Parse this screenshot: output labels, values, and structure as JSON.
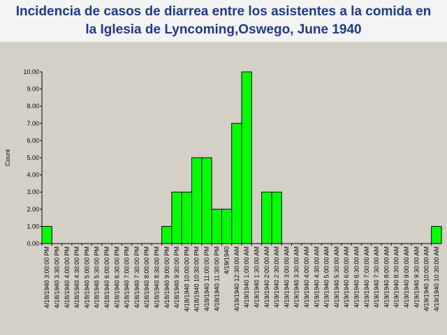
{
  "chart_data": {
    "type": "bar",
    "title": "Incidencia de casos de diarrea entre los asistentes a la comida en la Iglesia de Lyncoming,Oswego, June 1940",
    "y_label": "Count",
    "categories": [
      "4/18/1940 3:00:00 PM",
      "4/18/1940 3:30:00 PM",
      "4/18/1940 4:00:00 PM",
      "4/18/1940 4:30:00 PM",
      "4/18/1940 5:00:00 PM",
      "4/18/1940 5:30:00 PM",
      "4/18/1940 6:00:00 PM",
      "4/18/1940 6:30:00 PM",
      "4/18/1940 7:00:00 PM",
      "4/18/1940 7:30:00 PM",
      "4/18/1940 8:00:00 PM",
      "4/18/1940 8:30:00 PM",
      "4/18/1940 9:00:00 PM",
      "4/18/1940 9:30:00 PM",
      "4/18/1940 10:00:00 PM",
      "4/18/1940 10:30:00 PM",
      "4/18/1940 11:00:00 PM",
      "4/18/1940 11:30:00 PM",
      "4/19/1940",
      "4/19/1940 12:30:00 AM",
      "4/19/1940 1:00:00 AM",
      "4/19/1940 1:30:00 AM",
      "4/19/1940 2:00:00 AM",
      "4/19/1940 2:30:00 AM",
      "4/19/1940 3:00:00 AM",
      "4/19/1940 3:30:00 AM",
      "4/19/1940 4:00:00 AM",
      "4/19/1940 4:30:00 AM",
      "4/19/1940 5:00:00 AM",
      "4/19/1940 5:30:00 AM",
      "4/19/1940 6:00:00 AM",
      "4/19/1940 6:30:00 AM",
      "4/19/1940 7:00:00 AM",
      "4/19/1940 7:30:00 AM",
      "4/19/1940 8:00:00 AM",
      "4/19/1940 8:30:00 AM",
      "4/19/1940 9:00:00 AM",
      "4/19/1940 9:30:00 AM",
      "4/19/1940 10:00:00 AM",
      "4/19/1940 10:30:00 AM"
    ],
    "values": [
      1,
      0,
      0,
      0,
      0,
      0,
      0,
      0,
      0,
      0,
      0,
      0,
      1,
      3,
      3,
      5,
      5,
      2,
      2,
      7,
      10,
      0,
      3,
      3,
      0,
      0,
      0,
      0,
      0,
      0,
      0,
      0,
      0,
      0,
      0,
      0,
      0,
      0,
      0,
      1
    ],
    "color": "#00ff00",
    "ylim": [
      0,
      10
    ],
    "yticks": [
      {
        "value": 0,
        "label": "0.00"
      },
      {
        "value": 1,
        "label": "1.00"
      },
      {
        "value": 2,
        "label": "2.00"
      },
      {
        "value": 3,
        "label": "3.00"
      },
      {
        "value": 4,
        "label": "4.00"
      },
      {
        "value": 5,
        "label": "5.00"
      },
      {
        "value": 6,
        "label": "6.00"
      },
      {
        "value": 7,
        "label": "7.00"
      },
      {
        "value": 8,
        "label": "8.00"
      },
      {
        "value": 9,
        "label": "9.00"
      },
      {
        "value": 10,
        "label": "10.00"
      }
    ]
  }
}
